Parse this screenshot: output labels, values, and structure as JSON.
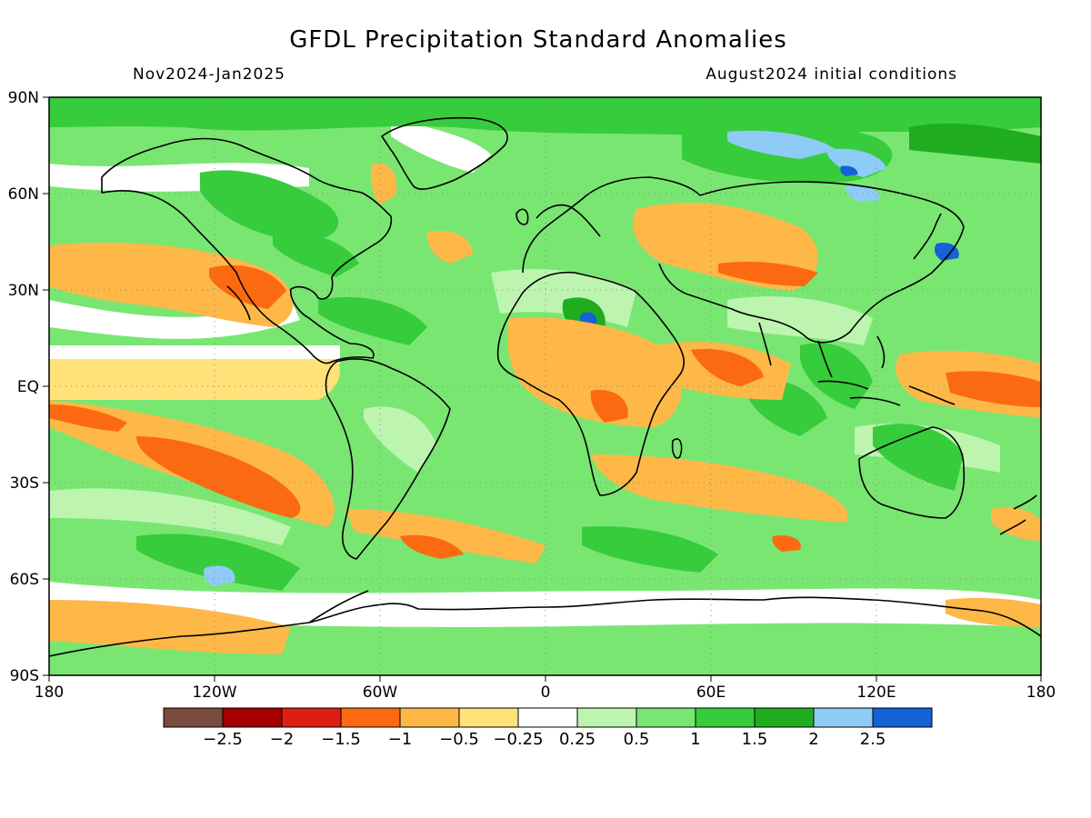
{
  "figure": {
    "title": "GFDL Precipitation Standard Anomalies",
    "period": "Nov2024-Jan2025",
    "initial_conditions": "August2024 initial conditions"
  },
  "axes": {
    "x_ticks": [
      "180",
      "120W",
      "60W",
      "0",
      "60E",
      "120E",
      "180"
    ],
    "y_ticks": [
      "90N",
      "60N",
      "30N",
      "EQ",
      "30S",
      "60S",
      "90S"
    ]
  },
  "colorbar": {
    "colors": [
      "#7b4a3e",
      "#a50000",
      "#de1e12",
      "#fb6a10",
      "#fdb848",
      "#ffe27a",
      "#ffffff",
      "#bdf5b0",
      "#79e672",
      "#37cc3b",
      "#1fad1f",
      "#8ecbf7",
      "#1561d6"
    ],
    "labels": [
      "-2.5",
      "-2",
      "-1.5",
      "-1",
      "-0.5",
      "-0.25",
      "0.25",
      "0.5",
      "1",
      "1.5",
      "2",
      "2.5"
    ]
  },
  "colors": {
    "land_outline": "#000000",
    "background_anomaly": "#79e672"
  }
}
